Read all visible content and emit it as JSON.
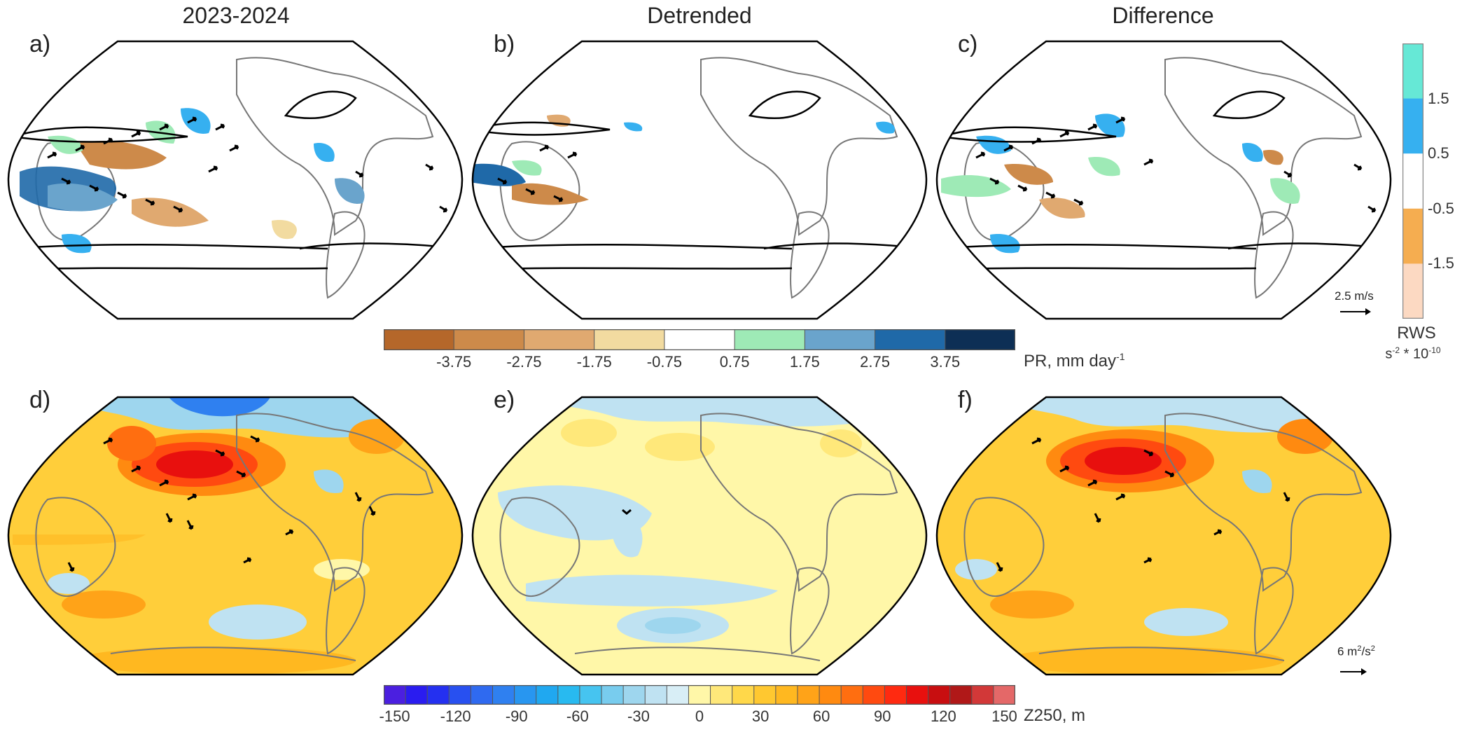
{
  "titles": {
    "col1": "2023-2024",
    "col2": "Detrended",
    "col3": "Difference"
  },
  "panels": [
    {
      "label": "a)",
      "kind": "precip"
    },
    {
      "label": "b)",
      "kind": "precip"
    },
    {
      "label": "c)",
      "kind": "precip"
    },
    {
      "label": "d)",
      "kind": "z250"
    },
    {
      "label": "e)",
      "kind": "z250"
    },
    {
      "label": "f)",
      "kind": "z250"
    }
  ],
  "pr_colorbar": {
    "label": "PR, mm day",
    "label_sup": "-1",
    "ticks": [
      "-3.75",
      "-2.75",
      "-1.75",
      "-0.75",
      "0.75",
      "1.75",
      "2.75",
      "3.75"
    ],
    "colors": [
      "#b5672a",
      "#cd8a4a",
      "#e0a970",
      "#f2dba0",
      "#ffffff",
      "#9eeab6",
      "#6aa4cc",
      "#1f69a8",
      "#0d2f55"
    ]
  },
  "z_colorbar": {
    "label": "Z250, m",
    "ticks": [
      "-150",
      "-120",
      "-90",
      "-60",
      "-30",
      "0",
      "30",
      "60",
      "90",
      "120",
      "150"
    ],
    "colors": [
      "#4b1fe0",
      "#2a1cf0",
      "#2430f0",
      "#2850f0",
      "#2f6af0",
      "#2f80f0",
      "#2896f0",
      "#20a8f0",
      "#28baf0",
      "#46c4f0",
      "#78ccee",
      "#9ed6ee",
      "#bfe2f2",
      "#d8eef6",
      "#fff7a8",
      "#ffe87a",
      "#ffd84a",
      "#ffc830",
      "#ffb820",
      "#ffa318",
      "#ff8a10",
      "#ff6e10",
      "#ff4a10",
      "#ff2a10",
      "#e8100e",
      "#c80e10",
      "#b01818",
      "#d23838",
      "#e46868"
    ]
  },
  "rws_colorbar": {
    "label": "RWS",
    "units": "s",
    "units_sup1": "-2",
    "units_mid": " * 10",
    "units_sup2": "-10",
    "ticks": [
      "1.5",
      "0.5",
      "-0.5",
      "-1.5"
    ],
    "colors": [
      "#66e8d6",
      "#36b0f0",
      "#ffffff",
      "#f5ad50",
      "#fcd9c2"
    ]
  },
  "reference_vectors": {
    "top": "2.5 m/s",
    "bottom": "6 m",
    "bottom_sup": "2",
    "bottom_tail": "/s",
    "bottom_sup2": "2"
  }
}
